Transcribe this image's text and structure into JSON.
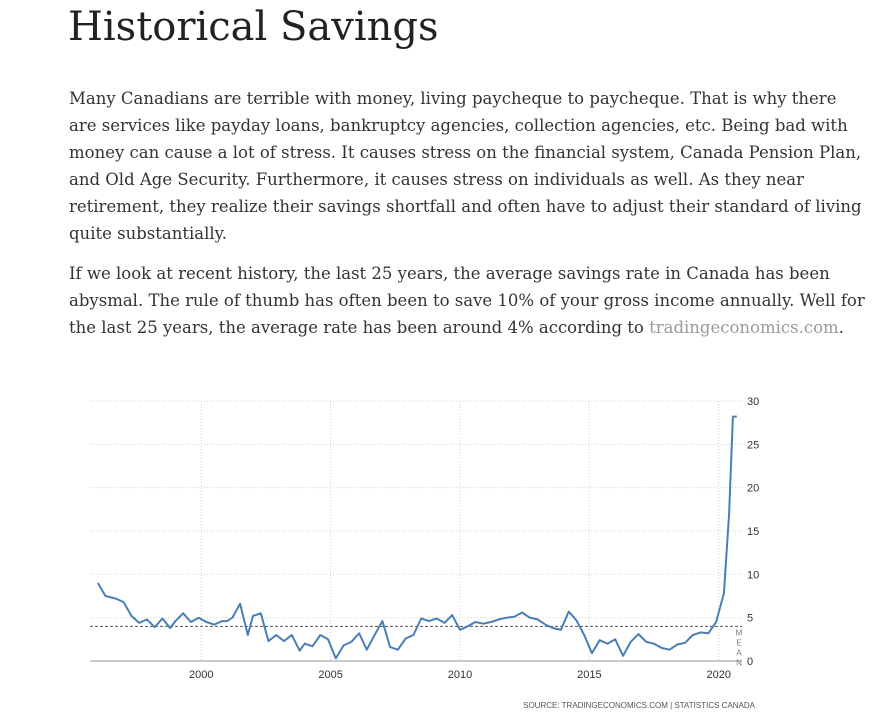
{
  "article": {
    "title": "Historical Savings",
    "paragraph1": "Many Canadians are terrible with money, living paycheque to paycheque. That is why there are services like payday loans, bankruptcy agencies, collection agencies, etc. Being bad with money can cause a lot of stress. It causes stress on the financial system, Canada Pension Plan, and Old Age Security. Furthermore, it causes stress on individuals as well. As they near retirement, they realize their savings shortfall and often have to adjust their standard of living quite substantially.",
    "paragraph2_text": "If we look at recent history, the last 25 years, the average savings rate in Canada has been abysmal. The rule of thumb has often been to save 10% of your gross income annually. Well for the last 25 years, the average rate has been around 4% according to ",
    "paragraph2_link": "tradingeconomics.com",
    "paragraph2_end": "."
  },
  "colors": {
    "line": "#4a7fb5",
    "grid": "#cfcfcf",
    "text": "#333333",
    "link": "#9a9a9a"
  },
  "chart_data": {
    "type": "line",
    "x_ticks": [
      "2000",
      "2005",
      "2010",
      "2015",
      "2020"
    ],
    "y_ticks": [
      "0",
      "5",
      "10",
      "15",
      "20",
      "25",
      "30"
    ],
    "xlim": [
      1995.7,
      2020.9
    ],
    "ylim": [
      0,
      30
    ],
    "mean_value": 4,
    "mean_label": "MEAN",
    "source": "SOURCE:  TRADINGECONOMICS.COM  |  STATISTICS CANADA",
    "series": [
      {
        "x": [
          1996.0,
          1996.3,
          1996.7,
          1997.0,
          1997.3,
          1997.6,
          1997.9,
          1998.2,
          1998.5,
          1998.8,
          1999.0,
          1999.3,
          1999.6,
          1999.9,
          2000.2,
          2000.5,
          2000.8,
          2001.0,
          2001.2,
          2001.5,
          2001.8,
          2002.0,
          2002.3,
          2002.6,
          2002.9,
          2003.2,
          2003.5,
          2003.8,
          2004.0,
          2004.3,
          2004.6,
          2004.9,
          2005.2,
          2005.5,
          2005.8,
          2006.1,
          2006.4,
          2006.7,
          2007.0,
          2007.3,
          2007.6,
          2007.9,
          2008.2,
          2008.5,
          2008.8,
          2009.1,
          2009.4,
          2009.7,
          2010.0,
          2010.3,
          2010.6,
          2010.9,
          2011.2,
          2011.5,
          2011.8,
          2012.1,
          2012.4,
          2012.7,
          2013.0,
          2013.3,
          2013.6,
          2013.9,
          2014.2,
          2014.5,
          2014.8,
          2015.1,
          2015.4,
          2015.7,
          2016.0,
          2016.3,
          2016.6,
          2016.9,
          2017.2,
          2017.5,
          2017.8,
          2018.1,
          2018.4,
          2018.7,
          2019.0,
          2019.3,
          2019.6,
          2019.9,
          2020.2,
          2020.4,
          2020.55,
          2020.7
        ],
        "y": [
          9.0,
          7.5,
          7.2,
          6.8,
          5.2,
          4.4,
          4.8,
          3.9,
          4.9,
          3.8,
          4.6,
          5.5,
          4.5,
          5.0,
          4.5,
          4.2,
          4.6,
          4.6,
          5.0,
          6.6,
          3.0,
          5.2,
          5.5,
          2.3,
          3.0,
          2.3,
          3.0,
          1.2,
          2.0,
          1.7,
          3.0,
          2.5,
          0.3,
          1.8,
          2.2,
          3.2,
          1.3,
          3.0,
          4.6,
          1.6,
          1.3,
          2.6,
          3.0,
          4.9,
          4.6,
          4.9,
          4.4,
          5.3,
          3.6,
          4.0,
          4.5,
          4.3,
          4.5,
          4.8,
          5.0,
          5.1,
          5.6,
          5.0,
          4.8,
          4.2,
          3.8,
          3.6,
          5.7,
          4.7,
          3.0,
          0.9,
          2.4,
          2.0,
          2.5,
          0.6,
          2.2,
          3.1,
          2.2,
          2.0,
          1.5,
          1.3,
          1.9,
          2.1,
          3.0,
          3.3,
          3.2,
          4.5,
          7.8,
          17.0,
          28.2,
          28.2
        ]
      }
    ]
  }
}
